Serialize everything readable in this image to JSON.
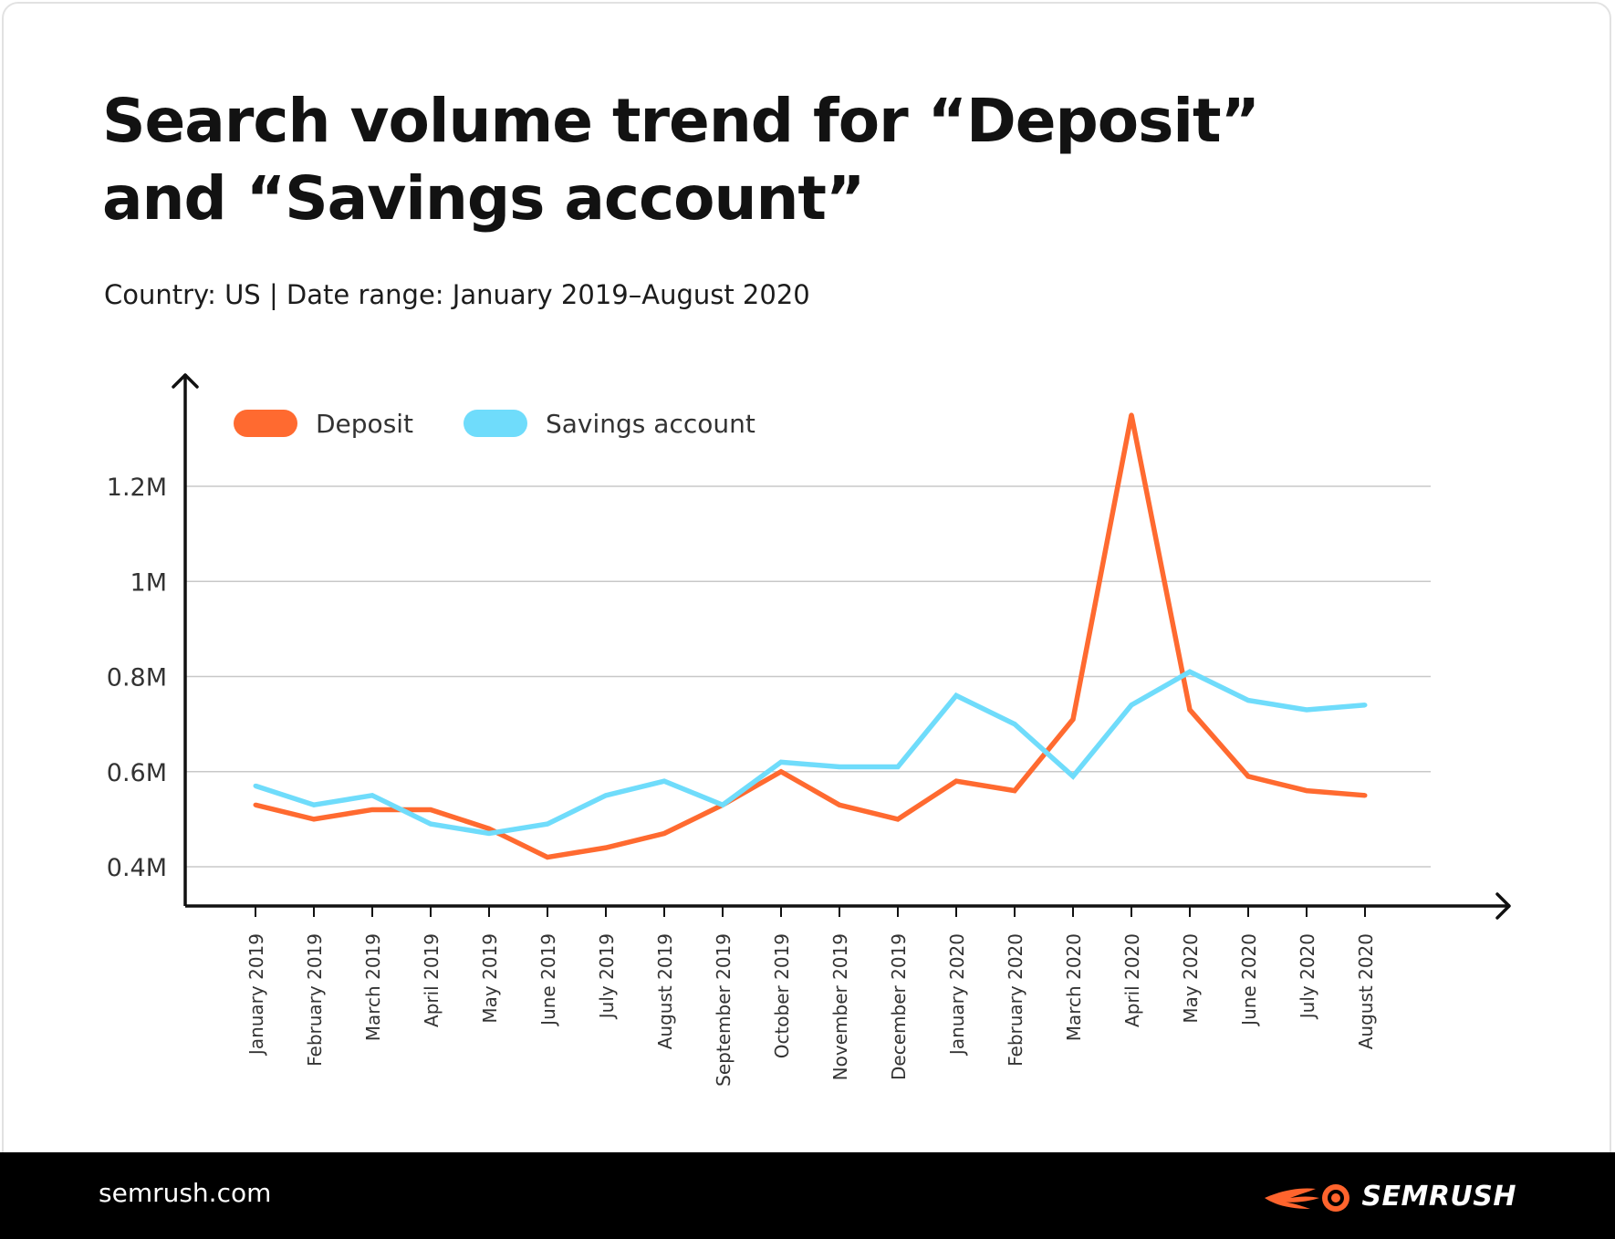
{
  "header": {
    "title": "Search volume trend for “Deposit” and “Savings account”",
    "subtitle": "Country: US | Date range: January 2019–August 2020"
  },
  "footer": {
    "site": "semrush.com",
    "brand": "SEMRUSH"
  },
  "colors": {
    "deposit": "#ff6a30",
    "savings": "#6fdcfb",
    "axis": "#111111",
    "grid": "#c8c8c8"
  },
  "chart_data": {
    "type": "line",
    "xlabel": "",
    "ylabel": "",
    "categories": [
      "January 2019",
      "February 2019",
      "March 2019",
      "April 2019",
      "May 2019",
      "June 2019",
      "July 2019",
      "August 2019",
      "September 2019",
      "October 2019",
      "November 2019",
      "December 2019",
      "January 2020",
      "February 2020",
      "March 2020",
      "April 2020",
      "May 2020",
      "June 2020",
      "July 2020",
      "August 2020"
    ],
    "y_ticks": [
      0.4,
      0.6,
      0.8,
      1.0,
      1.2
    ],
    "y_tick_labels": [
      "0.4M",
      "0.6M",
      "0.8M",
      "1M",
      "1.2M"
    ],
    "ylim": [
      0.32,
      1.43
    ],
    "y_unit": "millions",
    "grid": true,
    "legend_position": "top-left",
    "series": [
      {
        "name": "Deposit",
        "color": "#ff6a30",
        "values": [
          0.53,
          0.5,
          0.52,
          0.52,
          0.48,
          0.42,
          0.44,
          0.47,
          0.53,
          0.6,
          0.53,
          0.5,
          0.58,
          0.56,
          0.71,
          1.35,
          0.73,
          0.59,
          0.56,
          0.55
        ]
      },
      {
        "name": "Savings account",
        "color": "#6fdcfb",
        "values": [
          0.57,
          0.53,
          0.55,
          0.49,
          0.47,
          0.49,
          0.55,
          0.58,
          0.53,
          0.62,
          0.61,
          0.61,
          0.76,
          0.7,
          0.59,
          0.74,
          0.81,
          0.75,
          0.73,
          0.74
        ]
      }
    ]
  }
}
